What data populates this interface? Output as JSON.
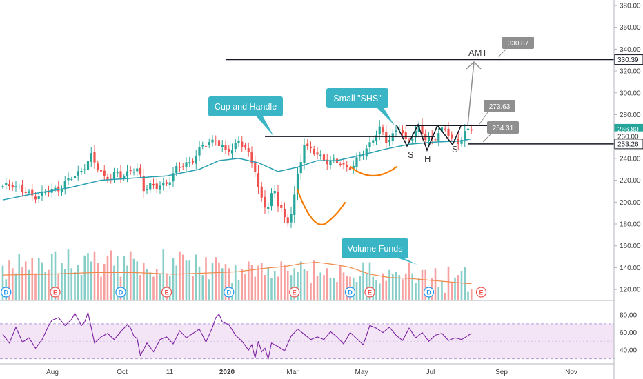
{
  "chart_data": {
    "type": "candlestick",
    "price_axis": {
      "range": [
        110,
        385
      ],
      "ticks": [
        "120.00",
        "140.00",
        "160.00",
        "180.00",
        "200.00",
        "220.00",
        "240.00",
        "260.00",
        "280.00",
        "300.00",
        "320.00",
        "340.00",
        "360.00",
        "380.00"
      ],
      "scale_tags": [
        {
          "label": "330.39",
          "value": 330.39,
          "color": "#ffffff",
          "text_color": "#131722",
          "border": "#131722"
        },
        {
          "label": "266.80",
          "value": 266.8,
          "color": "#26a69a",
          "text_color": "#ffffff"
        },
        {
          "label": "260.00",
          "value": 260.0,
          "color": "#ffffff",
          "text_color": "#3b3b3b"
        },
        {
          "label": "253.26",
          "value": 253.26,
          "color": "#ffffff",
          "text_color": "#131722",
          "border": "#131722"
        }
      ]
    },
    "rsi_axis": {
      "range": [
        25,
        88
      ],
      "ticks": [
        "40.00",
        "60.00",
        "80.00"
      ],
      "bands": [
        30,
        70
      ]
    },
    "time_axis": {
      "labels": [
        "Aug",
        "Oct",
        "11",
        "2020",
        "Mar",
        "May",
        "Jul",
        "Sep",
        "Nov"
      ]
    },
    "price_path": [
      [
        0,
        213
      ],
      [
        3,
        217
      ],
      [
        6,
        210
      ],
      [
        9,
        206
      ],
      [
        12,
        207
      ],
      [
        15,
        211
      ],
      [
        18,
        214
      ],
      [
        21,
        222
      ],
      [
        24,
        230
      ],
      [
        26,
        236
      ],
      [
        27,
        241
      ],
      [
        29,
        232
      ],
      [
        31,
        224
      ],
      [
        33,
        221
      ],
      [
        35,
        226
      ],
      [
        37,
        225
      ],
      [
        39,
        229
      ],
      [
        41,
        228
      ],
      [
        42,
        223
      ],
      [
        43,
        213
      ],
      [
        45,
        216
      ],
      [
        47,
        213
      ],
      [
        49,
        215
      ],
      [
        51,
        222
      ],
      [
        53,
        230
      ],
      [
        55,
        233
      ],
      [
        57,
        237
      ],
      [
        59,
        243
      ],
      [
        61,
        251
      ],
      [
        63,
        255
      ],
      [
        65,
        258
      ],
      [
        66,
        253
      ],
      [
        68,
        245
      ],
      [
        70,
        250
      ],
      [
        72,
        257
      ],
      [
        74,
        248
      ],
      [
        76,
        237
      ],
      [
        77,
        231
      ],
      [
        78,
        214
      ],
      [
        79,
        203
      ],
      [
        80,
        196
      ],
      [
        81,
        195
      ],
      [
        82,
        205
      ],
      [
        83,
        210
      ],
      [
        84,
        200
      ],
      [
        85,
        196
      ],
      [
        86,
        184
      ],
      [
        87,
        180
      ],
      [
        88,
        190
      ],
      [
        89,
        205
      ],
      [
        90,
        225
      ],
      [
        91,
        240
      ],
      [
        92,
        255
      ],
      [
        93,
        249
      ],
      [
        95,
        245
      ],
      [
        97,
        242
      ],
      [
        99,
        238
      ],
      [
        101,
        236
      ],
      [
        103,
        236
      ],
      [
        105,
        232
      ],
      [
        107,
        233
      ],
      [
        109,
        241
      ],
      [
        111,
        250
      ],
      [
        113,
        258
      ],
      [
        115,
        266
      ],
      [
        117,
        257
      ],
      [
        119,
        262
      ],
      [
        121,
        268
      ],
      [
        123,
        255
      ],
      [
        125,
        262
      ],
      [
        127,
        268
      ],
      [
        129,
        257
      ],
      [
        131,
        258
      ],
      [
        133,
        264
      ],
      [
        135,
        266
      ],
      [
        137,
        258
      ],
      [
        139,
        256
      ],
      [
        141,
        262
      ],
      [
        143,
        267
      ]
    ],
    "ma_path": [
      [
        0,
        202
      ],
      [
        10,
        208
      ],
      [
        20,
        213
      ],
      [
        30,
        220
      ],
      [
        40,
        222
      ],
      [
        50,
        224
      ],
      [
        60,
        230
      ],
      [
        66,
        238
      ],
      [
        72,
        240
      ],
      [
        78,
        236
      ],
      [
        84,
        228
      ],
      [
        90,
        232
      ],
      [
        96,
        238
      ],
      [
        102,
        238
      ],
      [
        108,
        242
      ],
      [
        116,
        248
      ],
      [
        124,
        253
      ],
      [
        132,
        255
      ],
      [
        140,
        256
      ],
      [
        143,
        258
      ]
    ],
    "volume": {
      "values": [
        41,
        25,
        47,
        38,
        32,
        55,
        39,
        46,
        36,
        50,
        32,
        50,
        45,
        34,
        36,
        55,
        58,
        31,
        44,
        37,
        60,
        38,
        34,
        42,
        30,
        53,
        56,
        46,
        58,
        44,
        28,
        43,
        53,
        59,
        41,
        52,
        28,
        52,
        41,
        58,
        49,
        46,
        30,
        44,
        37,
        33,
        28,
        37,
        31,
        60,
        32,
        29,
        50,
        41,
        58,
        54,
        47,
        47,
        29,
        54,
        40,
        30,
        51,
        25,
        44,
        51,
        45,
        38,
        43,
        38,
        21,
        42,
        24,
        37,
        31,
        46,
        42,
        28,
        41,
        44,
        30,
        39,
        26,
        35,
        28,
        46,
        42,
        35,
        30,
        38,
        34,
        46,
        37,
        35,
        21,
        47,
        29,
        33,
        30,
        38,
        27,
        26,
        22,
        42,
        33,
        29,
        28,
        27,
        22,
        29,
        45,
        32,
        45,
        28,
        24,
        20,
        32,
        23,
        36,
        31,
        34,
        30,
        25,
        32,
        45,
        32,
        21,
        26,
        36,
        36,
        14,
        26,
        38,
        16,
        23,
        9,
        40,
        22,
        27,
        30,
        35,
        39,
        10,
        13
      ],
      "series_colors": {
        "up": "#26a69a",
        "down": "#ef5350"
      }
    },
    "volume_ma_path": [
      [
        0,
        30
      ],
      [
        14,
        31
      ],
      [
        28,
        33
      ],
      [
        40,
        33
      ],
      [
        52,
        31
      ],
      [
        60,
        32
      ],
      [
        72,
        34
      ],
      [
        80,
        38
      ],
      [
        86,
        40
      ],
      [
        92,
        44
      ],
      [
        96,
        45
      ],
      [
        102,
        42
      ],
      [
        106,
        39
      ],
      [
        112,
        31
      ],
      [
        118,
        27
      ],
      [
        124,
        26
      ],
      [
        130,
        24
      ],
      [
        136,
        22
      ],
      [
        142,
        20
      ]
    ],
    "rsi_path": [
      [
        0,
        58
      ],
      [
        2,
        48
      ],
      [
        4,
        66
      ],
      [
        6,
        49
      ],
      [
        8,
        54
      ],
      [
        10,
        42
      ],
      [
        12,
        52
      ],
      [
        14,
        68
      ],
      [
        15,
        74
      ],
      [
        17,
        77
      ],
      [
        19,
        68
      ],
      [
        21,
        75
      ],
      [
        22,
        82
      ],
      [
        24,
        68
      ],
      [
        25,
        72
      ],
      [
        26,
        83
      ],
      [
        28,
        48
      ],
      [
        30,
        55
      ],
      [
        32,
        59
      ],
      [
        34,
        52
      ],
      [
        36,
        61
      ],
      [
        38,
        69
      ],
      [
        39,
        65
      ],
      [
        40,
        56
      ],
      [
        41,
        53
      ],
      [
        42,
        34
      ],
      [
        44,
        48
      ],
      [
        46,
        38
      ],
      [
        48,
        52
      ],
      [
        50,
        55
      ],
      [
        52,
        47
      ],
      [
        54,
        62
      ],
      [
        56,
        54
      ],
      [
        58,
        59
      ],
      [
        60,
        64
      ],
      [
        62,
        49
      ],
      [
        64,
        66
      ],
      [
        65,
        77
      ],
      [
        66,
        81
      ],
      [
        67,
        72
      ],
      [
        69,
        69
      ],
      [
        71,
        57
      ],
      [
        73,
        50
      ],
      [
        75,
        40
      ],
      [
        76,
        46
      ],
      [
        77,
        31
      ],
      [
        78,
        50
      ],
      [
        79,
        38
      ],
      [
        80,
        42
      ],
      [
        81,
        30
      ],
      [
        82,
        48
      ],
      [
        84,
        44
      ],
      [
        86,
        39
      ],
      [
        88,
        56
      ],
      [
        90,
        64
      ],
      [
        92,
        58
      ],
      [
        94,
        52
      ],
      [
        96,
        55
      ],
      [
        98,
        52
      ],
      [
        100,
        61
      ],
      [
        102,
        55
      ],
      [
        104,
        47
      ],
      [
        106,
        60
      ],
      [
        108,
        53
      ],
      [
        110,
        46
      ],
      [
        112,
        68
      ],
      [
        114,
        65
      ],
      [
        116,
        60
      ],
      [
        118,
        66
      ],
      [
        120,
        57
      ],
      [
        122,
        51
      ],
      [
        124,
        65
      ],
      [
        126,
        54
      ],
      [
        128,
        60
      ],
      [
        130,
        50
      ],
      [
        132,
        57
      ],
      [
        134,
        59
      ],
      [
        136,
        51
      ],
      [
        138,
        54
      ],
      [
        140,
        52
      ],
      [
        143,
        59
      ]
    ],
    "events": [
      {
        "label": "D",
        "bar": 1,
        "color": "#2196f3"
      },
      {
        "label": "E",
        "bar": 16,
        "color": "#ef5350"
      },
      {
        "label": "D",
        "bar": 36,
        "color": "#2196f3"
      },
      {
        "label": "E",
        "bar": 50,
        "color": "#ef5350"
      },
      {
        "label": "D",
        "bar": 69,
        "color": "#2196f3"
      },
      {
        "label": "E",
        "bar": 89,
        "color": "#ef5350"
      },
      {
        "label": "D",
        "bar": 106,
        "color": "#2196f3"
      },
      {
        "label": "E",
        "bar": 112,
        "color": "#ef5350"
      },
      {
        "label": "D",
        "bar": 130,
        "color": "#2196f3"
      },
      {
        "label": "E",
        "bar": 146,
        "color": "#ef5350"
      }
    ],
    "levels": [
      {
        "name": "AMT target line",
        "value": 330.39,
        "from_bar": 68,
        "to_bar": 195
      },
      {
        "name": "neckline",
        "value": 253.26,
        "from_bar": 142,
        "to_bar": 195
      },
      {
        "name": "cup rim",
        "value": 260.0,
        "from_bar": 80,
        "to_bar": 132
      },
      {
        "name": "shs top",
        "value": 270.0,
        "from_bar": 123,
        "to_bar": 151
      }
    ],
    "annotations": {
      "callouts": [
        {
          "name": "cup-and-handle-callout",
          "text": "Cup and Handle"
        },
        {
          "name": "small-shs-callout",
          "text": "Small \"SHS\""
        },
        {
          "name": "volume-funds-callout",
          "text": "Volume Funds"
        }
      ],
      "price_tags": [
        "330.87",
        "273.63",
        "254.31"
      ],
      "pattern_labels": [
        "AMT",
        "S",
        "H",
        "S"
      ]
    },
    "colors": {
      "up": "#26a69a",
      "down": "#ef5350",
      "ma": "#2a9fb0",
      "volume_ma": "#f08a4b",
      "rsi": "#7b1fa2",
      "rsi_band": "#f3e5f5",
      "callout": "#39b5c6",
      "tag": "#8f8f8f",
      "cup": "#f57c00",
      "levels": "#131722"
    }
  }
}
